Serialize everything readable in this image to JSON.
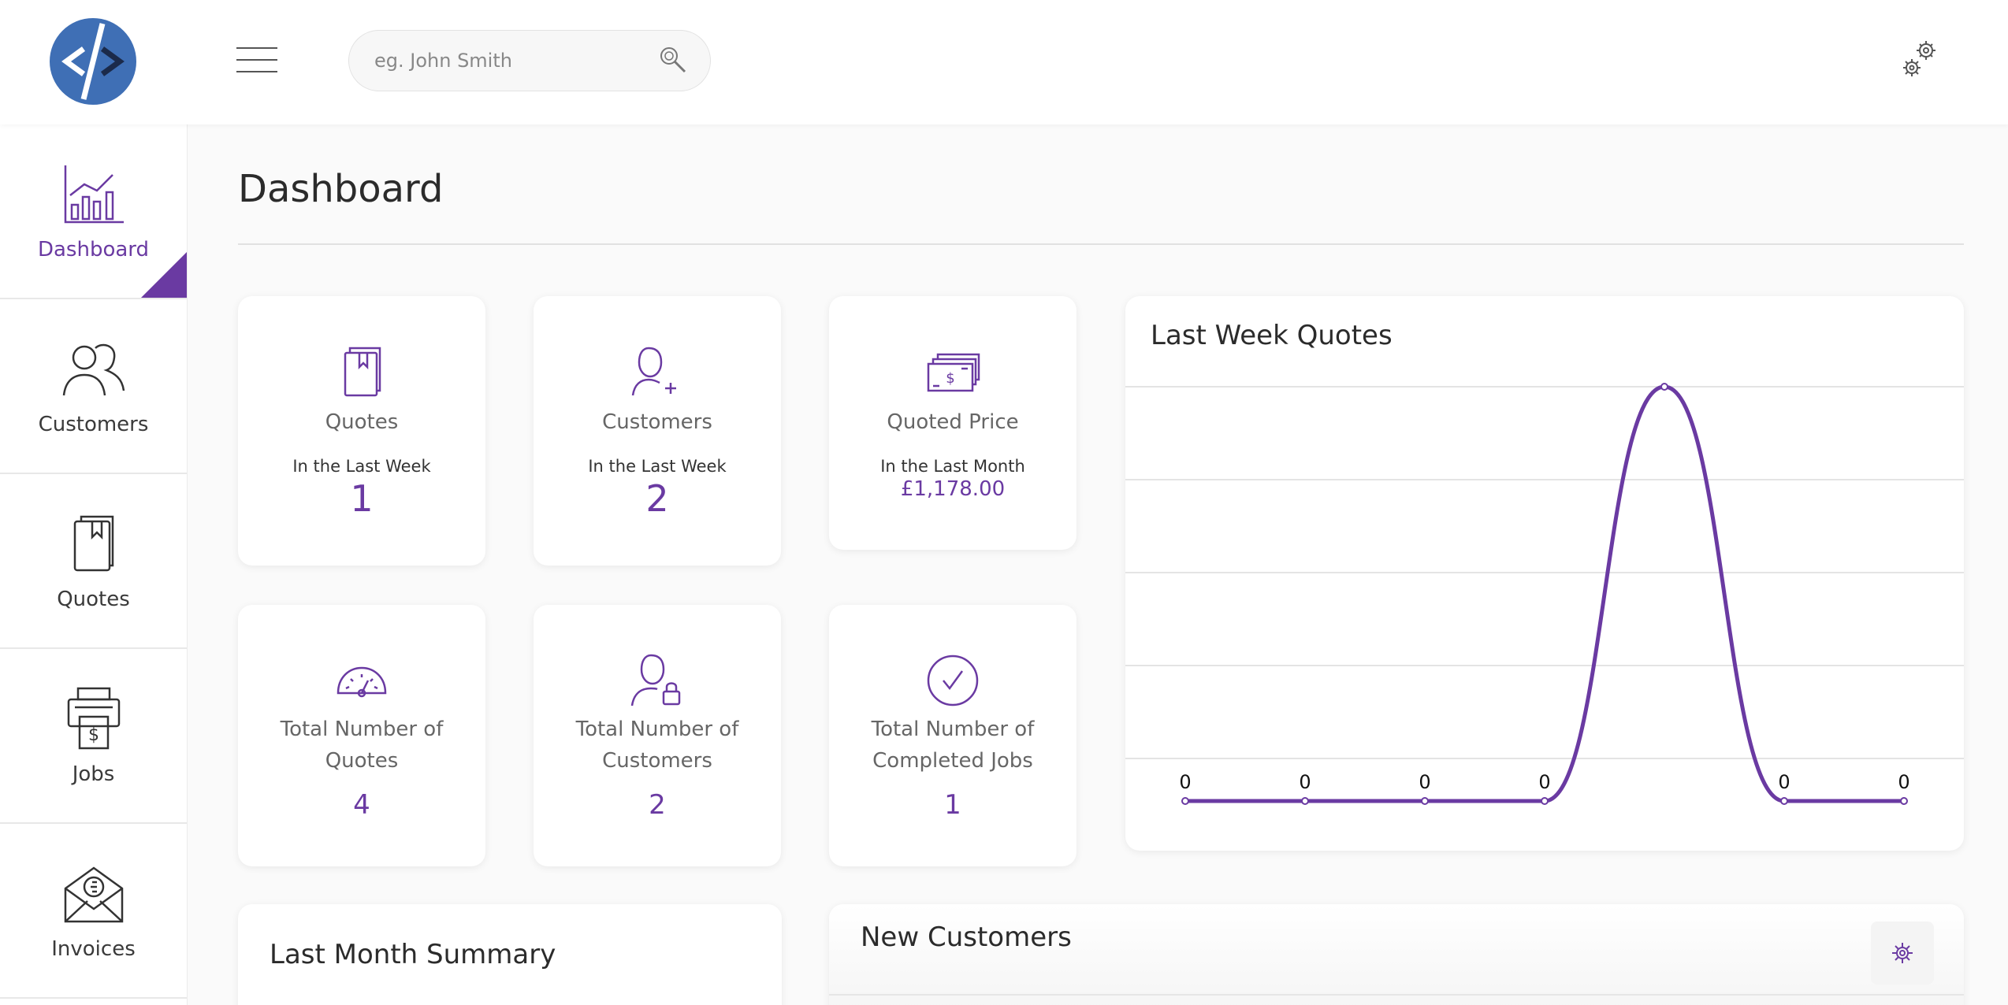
{
  "header": {
    "search_placeholder": "eg. John Smith"
  },
  "sidebar": {
    "items": [
      {
        "label": "Dashboard",
        "icon": "chart-icon",
        "active": true
      },
      {
        "label": "Customers",
        "icon": "customers-icon"
      },
      {
        "label": "Quotes",
        "icon": "book-icon"
      },
      {
        "label": "Jobs",
        "icon": "cash-register-icon"
      },
      {
        "label": "Invoices",
        "icon": "envelope-icon"
      }
    ]
  },
  "page": {
    "title": "Dashboard"
  },
  "stats": [
    {
      "title": "Quotes",
      "subtitle": "In the Last Week",
      "value": "1",
      "icon": "book-icon"
    },
    {
      "title": "Customers",
      "subtitle": "In the Last Week",
      "value": "2",
      "icon": "add-user-icon"
    },
    {
      "title": "Quoted Price",
      "subtitle": "In the Last Month",
      "value": "£1,178.00",
      "icon": "money-icon"
    }
  ],
  "totals": [
    {
      "title": "Total Number of Quotes",
      "value": "4",
      "icon": "gauge-icon"
    },
    {
      "title": "Total Number of Customers",
      "value": "2",
      "icon": "user-lock-icon"
    },
    {
      "title": "Total Number of Completed Jobs",
      "value": "1",
      "icon": "check-circle-icon"
    }
  ],
  "cards": {
    "last_month_summary": "Last Month Summary",
    "new_customers": "New Customers"
  },
  "colors": {
    "accent": "#6a3aa2",
    "logo": "#3f6fb5"
  },
  "chart_data": {
    "type": "line",
    "title": "Last Week Quotes",
    "x": [
      "1",
      "2",
      "3",
      "4",
      "5",
      "6",
      "7"
    ],
    "series": [
      {
        "values": [
          0,
          0,
          0,
          0,
          1,
          0,
          0
        ]
      }
    ],
    "data_labels": [
      "0",
      "0",
      "0",
      "0",
      "",
      "0",
      "0"
    ],
    "ylim": [
      0,
      1
    ],
    "grid": true,
    "smooth": true
  }
}
